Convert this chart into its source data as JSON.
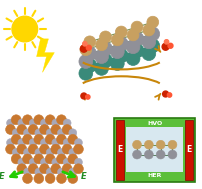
{
  "bg_color": "#ffffff",
  "sun_color": "#FFD700",
  "sun_ray_color": "#FFD700",
  "lightning_color": "#FFE000",
  "arrow_color": "#C8860A",
  "red_dot_color": "#CC2200",
  "green_box_color": "#5BBF3A",
  "green_box_edge": "#2A7A10",
  "red_bar_color": "#CC1100",
  "bond_color_top": "#5A8A3A",
  "bond_color_mid": "#4A7A6A",
  "atom_tan": "#C8A060",
  "atom_gray": "#909098",
  "atom_teal": "#3A8A7A",
  "atom_brown": "#C87830",
  "atom_silver": "#A8A8B8",
  "green_arrow_color": "#22CC00",
  "hvo_label": "HVO",
  "her_label": "HER",
  "e_label": "E"
}
